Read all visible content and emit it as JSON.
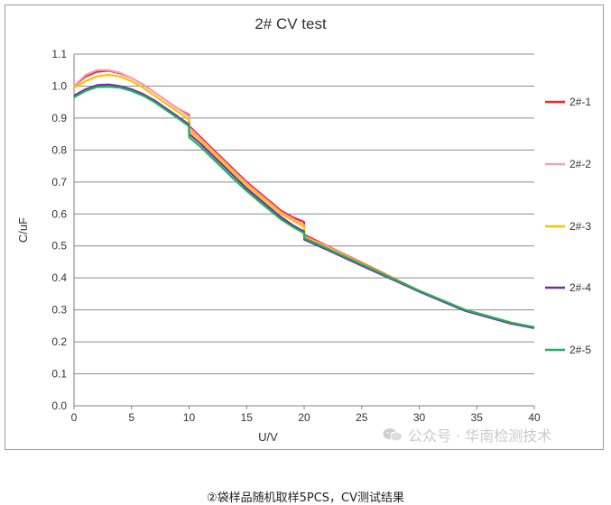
{
  "caption": "②袋样品随机取样5PCS，CV测试结果",
  "watermark": "公众号 · 华南检测技术",
  "chart_data": {
    "type": "line",
    "title": "2# CV test",
    "xlabel": "U/V",
    "ylabel": "C/uF",
    "xlim": [
      0,
      40
    ],
    "ylim": [
      0.0,
      1.1
    ],
    "xticks": [
      0,
      5,
      10,
      15,
      20,
      25,
      30,
      35,
      40
    ],
    "yticks": [
      0.0,
      0.1,
      0.2,
      0.3,
      0.4,
      0.5,
      0.6,
      0.7,
      0.8,
      0.9,
      1.0,
      1.1
    ],
    "grid": "horizontal",
    "legend": "right",
    "x": [
      0,
      1,
      2,
      3,
      4,
      5,
      6,
      7,
      8,
      9,
      9.99,
      10.01,
      11,
      12,
      13,
      14,
      15,
      16,
      17,
      18,
      19,
      19.99,
      20.01,
      22,
      24,
      26,
      28,
      30,
      32,
      34,
      36,
      38,
      40
    ],
    "series": [
      {
        "name": "2#-1",
        "color": "#ff2020",
        "values": [
          1.0,
          1.03,
          1.045,
          1.048,
          1.04,
          1.025,
          1.005,
          0.98,
          0.955,
          0.93,
          0.91,
          0.875,
          0.84,
          0.805,
          0.77,
          0.735,
          0.7,
          0.67,
          0.64,
          0.61,
          0.59,
          0.575,
          0.535,
          0.5,
          0.465,
          0.43,
          0.395,
          0.36,
          0.33,
          0.3,
          0.28,
          0.26,
          0.245
        ]
      },
      {
        "name": "2#-2",
        "color": "#f4a0c0",
        "values": [
          1.0,
          1.035,
          1.05,
          1.05,
          1.042,
          1.025,
          1.005,
          0.98,
          0.955,
          0.93,
          0.905,
          0.87,
          0.835,
          0.8,
          0.765,
          0.73,
          0.695,
          0.665,
          0.635,
          0.605,
          0.585,
          0.565,
          0.53,
          0.498,
          0.463,
          0.428,
          0.393,
          0.358,
          0.328,
          0.298,
          0.278,
          0.258,
          0.243
        ]
      },
      {
        "name": "2#-3",
        "color": "#ffc000",
        "values": [
          0.995,
          1.015,
          1.03,
          1.035,
          1.03,
          1.015,
          0.995,
          0.97,
          0.945,
          0.92,
          0.895,
          0.86,
          0.83,
          0.795,
          0.76,
          0.725,
          0.69,
          0.66,
          0.63,
          0.6,
          0.58,
          0.56,
          0.528,
          0.495,
          0.462,
          0.428,
          0.394,
          0.36,
          0.33,
          0.3,
          0.28,
          0.26,
          0.245
        ]
      },
      {
        "name": "2#-4",
        "color": "#7030a0",
        "values": [
          0.97,
          0.99,
          1.003,
          1.005,
          1.0,
          0.99,
          0.975,
          0.955,
          0.93,
          0.905,
          0.88,
          0.85,
          0.82,
          0.785,
          0.75,
          0.715,
          0.68,
          0.65,
          0.62,
          0.59,
          0.565,
          0.545,
          0.52,
          0.488,
          0.455,
          0.422,
          0.39,
          0.357,
          0.327,
          0.297,
          0.277,
          0.257,
          0.243
        ]
      },
      {
        "name": "2#-5",
        "color": "#20b060",
        "values": [
          0.965,
          0.985,
          0.997,
          0.998,
          0.995,
          0.985,
          0.97,
          0.95,
          0.925,
          0.9,
          0.875,
          0.84,
          0.81,
          0.775,
          0.74,
          0.705,
          0.672,
          0.642,
          0.612,
          0.583,
          0.56,
          0.54,
          0.525,
          0.492,
          0.459,
          0.426,
          0.393,
          0.36,
          0.33,
          0.3,
          0.28,
          0.26,
          0.246
        ]
      }
    ]
  }
}
